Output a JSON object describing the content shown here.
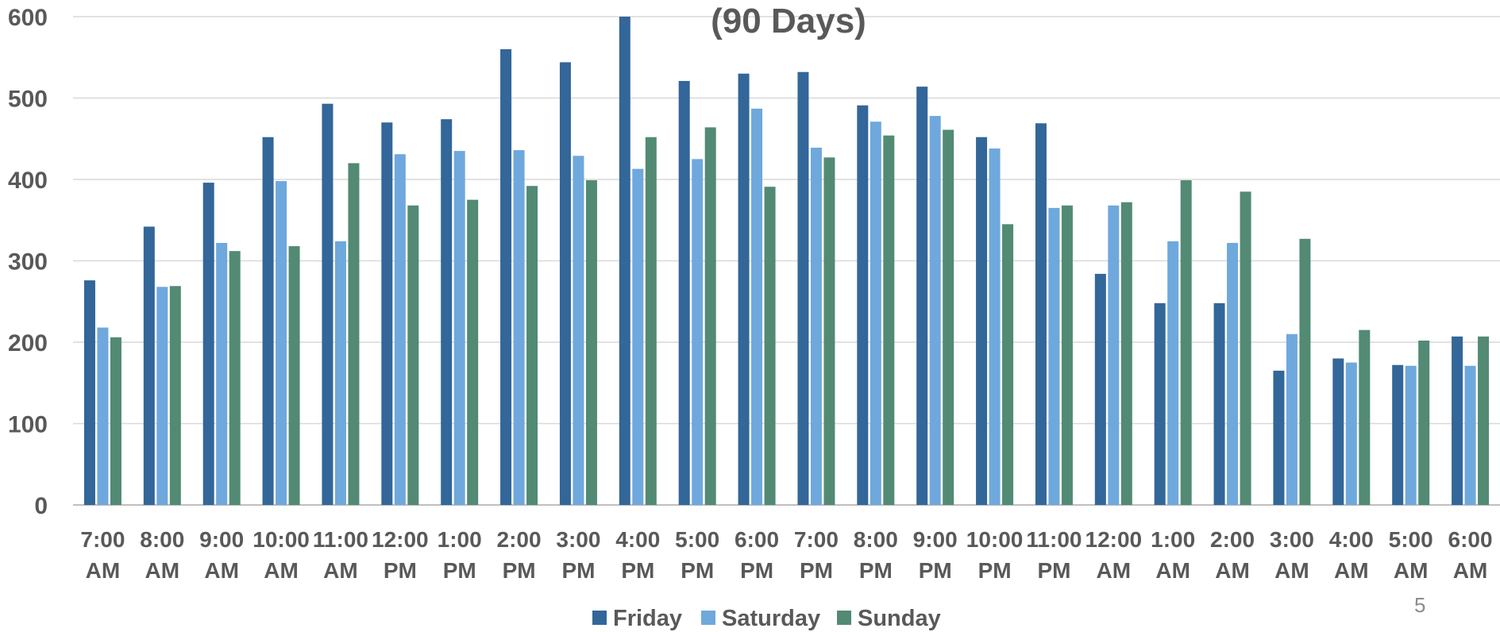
{
  "chart_data": {
    "type": "bar",
    "title": "(90 Days)",
    "ylim": [
      0,
      600
    ],
    "y_ticks": [
      "0",
      "100",
      "200",
      "300",
      "400",
      "500",
      "600"
    ],
    "grid": true,
    "legend_position": "bottom",
    "categories": [
      [
        "7:00",
        "AM"
      ],
      [
        "8:00",
        "AM"
      ],
      [
        "9:00",
        "AM"
      ],
      [
        "10:00",
        "AM"
      ],
      [
        "11:00",
        "AM"
      ],
      [
        "12:00",
        "PM"
      ],
      [
        "1:00",
        "PM"
      ],
      [
        "2:00",
        "PM"
      ],
      [
        "3:00",
        "PM"
      ],
      [
        "4:00",
        "PM"
      ],
      [
        "5:00",
        "PM"
      ],
      [
        "6:00",
        "PM"
      ],
      [
        "7:00",
        "PM"
      ],
      [
        "8:00",
        "PM"
      ],
      [
        "9:00",
        "PM"
      ],
      [
        "10:00",
        "PM"
      ],
      [
        "11:00",
        "PM"
      ],
      [
        "12:00",
        "AM"
      ],
      [
        "1:00",
        "AM"
      ],
      [
        "2:00",
        "AM"
      ],
      [
        "3:00",
        "AM"
      ],
      [
        "4:00",
        "AM"
      ],
      [
        "5:00",
        "AM"
      ],
      [
        "6:00",
        "AM"
      ]
    ],
    "series": [
      {
        "name": "Friday",
        "color": "#336699",
        "values": [
          276,
          342,
          396,
          452,
          493,
          470,
          474,
          560,
          544,
          600,
          521,
          530,
          532,
          491,
          514,
          452,
          469,
          284,
          248,
          248,
          165,
          180,
          172,
          207
        ]
      },
      {
        "name": "Saturday",
        "color": "#6fa8dc",
        "values": [
          218,
          268,
          322,
          398,
          324,
          431,
          435,
          436,
          429,
          413,
          425,
          487,
          439,
          471,
          478,
          438,
          365,
          368,
          324,
          322,
          210,
          175,
          171,
          171
        ]
      },
      {
        "name": "Sunday",
        "color": "#528a74",
        "values": [
          206,
          269,
          312,
          318,
          420,
          368,
          375,
          392,
          399,
          452,
          464,
          391,
          427,
          454,
          461,
          345,
          368,
          372,
          399,
          385,
          327,
          215,
          202,
          207
        ]
      }
    ]
  },
  "page_number": "5"
}
